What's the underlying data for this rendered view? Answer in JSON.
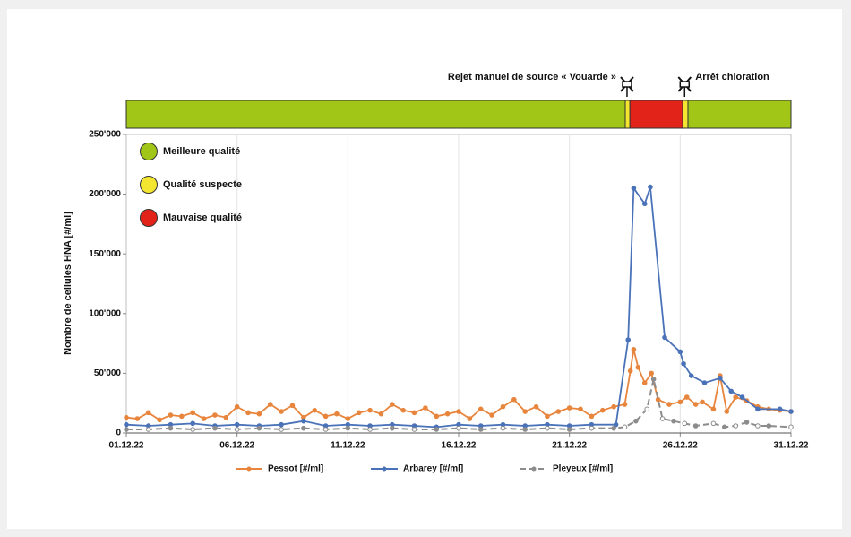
{
  "chart_data": {
    "type": "line",
    "ylabel": "Nombre de cellules HNA [#/ml]",
    "xlim": [
      1,
      31
    ],
    "xticks": [
      {
        "value": 1,
        "label": "01.12.22"
      },
      {
        "value": 6,
        "label": "06.12.22"
      },
      {
        "value": 11,
        "label": "11.12.22"
      },
      {
        "value": 16,
        "label": "16.12.22"
      },
      {
        "value": 21,
        "label": "21.12.22"
      },
      {
        "value": 26,
        "label": "26.12.22"
      },
      {
        "value": 31,
        "label": "31.12.22"
      }
    ],
    "ylim": [
      0,
      250000
    ],
    "yticks": [
      0,
      {
        "value": 50000,
        "label": "50'000"
      },
      {
        "value": 100000,
        "label": "100'000"
      },
      {
        "value": 150000,
        "label": "150'000"
      },
      {
        "value": 200000,
        "label": "200'000"
      },
      {
        "value": 250000,
        "label": "250'000"
      }
    ],
    "grid": "x",
    "legend": "bottom",
    "series": [
      {
        "name": "Pessot [#/ml]",
        "color": "#e8853d",
        "dashed": false,
        "x": [
          1,
          1.5,
          2,
          2.5,
          3,
          3.5,
          4,
          4.5,
          5,
          5.5,
          6,
          6.5,
          7,
          7.5,
          8,
          8.5,
          9,
          9.5,
          10,
          10.5,
          11,
          11.5,
          12,
          12.5,
          13,
          13.5,
          14,
          14.5,
          15,
          15.5,
          16,
          16.5,
          17,
          17.5,
          18,
          18.5,
          19,
          19.5,
          20,
          20.5,
          21,
          21.5,
          22,
          22.5,
          23,
          23.5,
          23.75,
          23.9,
          24.1,
          24.4,
          24.7,
          25,
          25.5,
          26,
          26.3,
          26.7,
          27,
          27.5,
          27.8,
          28.1,
          28.5,
          29,
          29.5,
          30,
          30.5,
          31
        ],
        "values": [
          13000,
          12000,
          17000,
          11000,
          15000,
          14000,
          17000,
          12000,
          15000,
          13000,
          22000,
          17000,
          16000,
          24000,
          18000,
          23000,
          13000,
          19000,
          14000,
          16000,
          12000,
          17000,
          19000,
          16000,
          24000,
          19000,
          17000,
          21000,
          14000,
          16000,
          18000,
          12000,
          20000,
          15000,
          22000,
          28000,
          18000,
          22000,
          14000,
          18000,
          21000,
          20000,
          14000,
          19000,
          22000,
          24000,
          52000,
          70000,
          55000,
          42000,
          50000,
          28000,
          24000,
          26000,
          30000,
          24000,
          26000,
          20000,
          48000,
          18000,
          30000,
          27000,
          22000,
          20000,
          19000,
          18000
        ]
      },
      {
        "name": "Arbarey [#/ml]",
        "color": "#4a72b8",
        "dashed": false,
        "x": [
          1,
          2,
          3,
          4,
          5,
          6,
          7,
          8,
          9,
          10,
          11,
          12,
          13,
          14,
          15,
          16,
          17,
          18,
          19,
          20,
          21,
          22,
          23.1,
          23.65,
          23.9,
          24.4,
          24.65,
          25.3,
          26,
          26.15,
          26.5,
          27.1,
          27.8,
          28.3,
          28.8,
          29.5,
          30.5,
          31
        ],
        "values": [
          7000,
          6000,
          7000,
          8000,
          6000,
          7000,
          6000,
          7000,
          10000,
          6000,
          7000,
          6000,
          7000,
          6000,
          5000,
          7000,
          6000,
          7000,
          6000,
          7000,
          6000,
          7000,
          7000,
          78000,
          205000,
          192000,
          206000,
          80000,
          68000,
          58000,
          48000,
          42000,
          46000,
          35000,
          30000,
          20000,
          20000,
          18000
        ]
      },
      {
        "name": "Pleyeux  [#/ml]",
        "color": "#8c8c8c",
        "dashed": true,
        "x": [
          1,
          2,
          3,
          4,
          5,
          6,
          7,
          8,
          9,
          10,
          11,
          12,
          13,
          14,
          15,
          16,
          17,
          18,
          19,
          20,
          21,
          22,
          23,
          23.5,
          24,
          24.5,
          24.8,
          25.2,
          25.7,
          26.2,
          26.7,
          27.5,
          28,
          28.5,
          29,
          29.5,
          30,
          31
        ],
        "values": [
          3000,
          3000,
          4000,
          3000,
          4000,
          3000,
          4000,
          3000,
          4000,
          3000,
          4000,
          3000,
          4000,
          3000,
          3000,
          4000,
          3000,
          4000,
          3000,
          4000,
          3000,
          4000,
          4000,
          5000,
          10000,
          20000,
          45000,
          12000,
          10000,
          8000,
          6000,
          8000,
          5000,
          6000,
          9000,
          6000,
          6000,
          5000
        ]
      }
    ],
    "quality_segments": [
      {
        "start": 1,
        "end": 23.52,
        "color": "#a2c617"
      },
      {
        "start": 23.52,
        "end": 23.73,
        "color": "#f4e531"
      },
      {
        "start": 23.73,
        "end": 26.11,
        "color": "#e2231a"
      },
      {
        "start": 26.11,
        "end": 26.35,
        "color": "#f4e531"
      },
      {
        "start": 26.35,
        "end": 31,
        "color": "#a2c617"
      }
    ],
    "quality_legend": [
      {
        "label": "Meilleure qualité",
        "color": "#a2c617"
      },
      {
        "label": "Qualité suspecte",
        "color": "#f4e531"
      },
      {
        "label": "Mauvaise qualité",
        "color": "#e2231a"
      }
    ],
    "annotations": [
      {
        "x": 23.6,
        "text": "Rejet manuel de source « Vouarde »",
        "side": "left"
      },
      {
        "x": 26.2,
        "text": "Arrêt chloration",
        "side": "right"
      }
    ]
  }
}
